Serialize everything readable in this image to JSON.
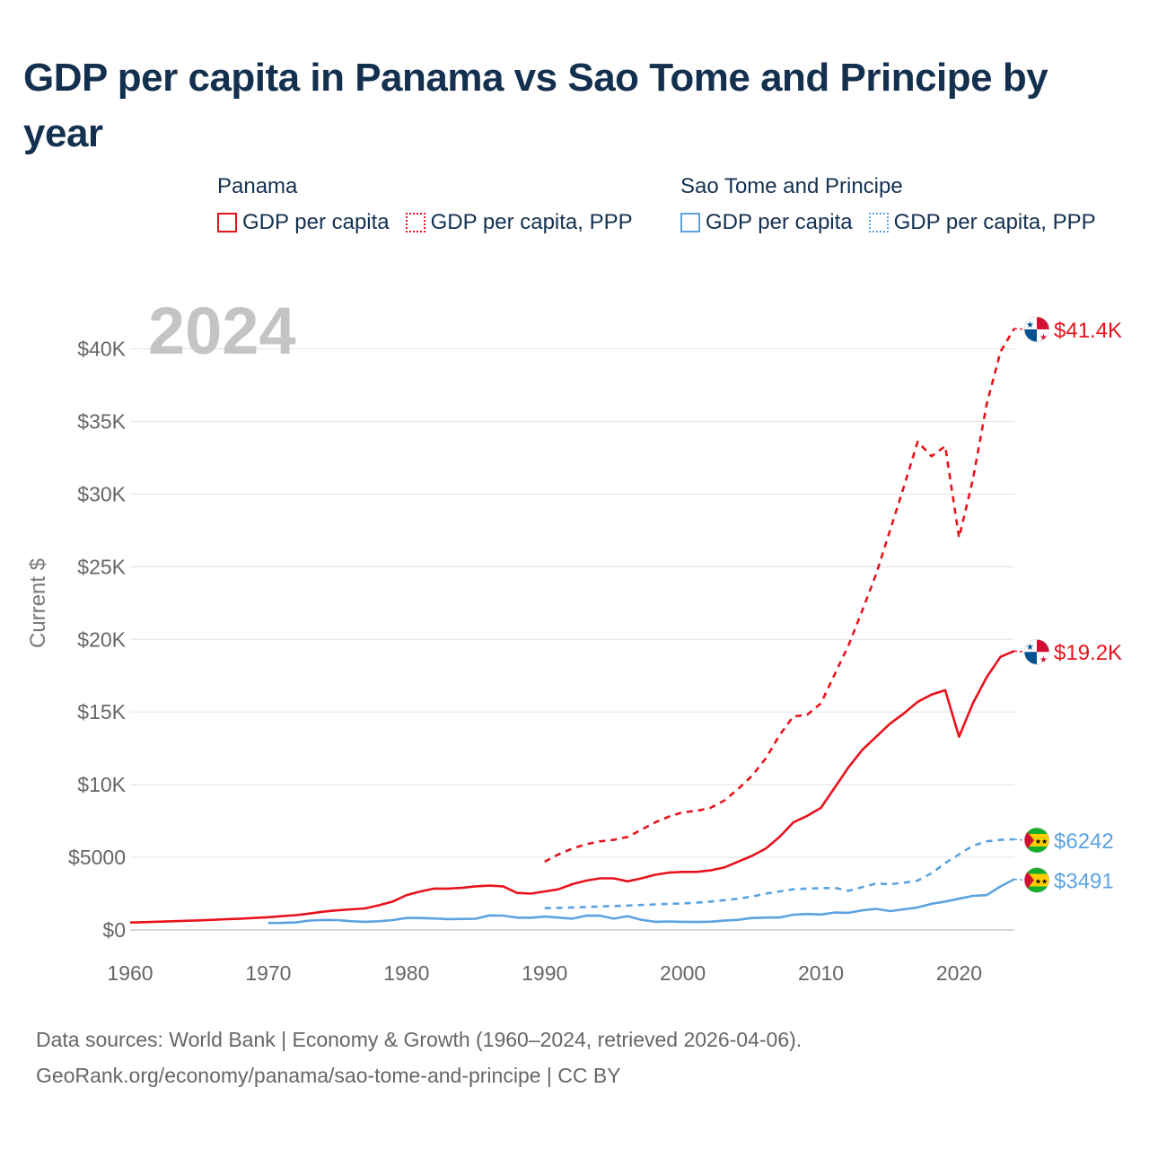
{
  "title": "GDP per capita in Panama vs Sao Tome and Principe by year",
  "legend": {
    "groups": [
      {
        "name": "Panama",
        "items": [
          {
            "label": "GDP per capita",
            "color": "#e8121c",
            "style": "solid"
          },
          {
            "label": "GDP per capita, PPP",
            "color": "#e8121c",
            "style": "dotted"
          }
        ]
      },
      {
        "name": "Sao Tome and Principe",
        "items": [
          {
            "label": "GDP per capita",
            "color": "#5ba3e0",
            "style": "solid"
          },
          {
            "label": "GDP per capita, PPP",
            "color": "#5ba3e0",
            "style": "dotted"
          }
        ]
      }
    ]
  },
  "year_watermark": "2024",
  "footer": {
    "line1": "Data sources: World Bank | Economy & Growth (1960–2024, retrieved 2026-04-06).",
    "line2": "GeoRank.org/economy/panama/sao-tome-and-principe | CC BY"
  },
  "chart_data": {
    "type": "line",
    "title": "GDP per capita in Panama vs Sao Tome and Principe by year",
    "xlabel": "",
    "ylabel": "Current $",
    "xlim": [
      1960,
      2024
    ],
    "ylim": [
      0,
      43000
    ],
    "x_ticks": [
      1960,
      1970,
      1980,
      1990,
      2000,
      2010,
      2020
    ],
    "x_tick_labels": [
      "1960",
      "1970",
      "1980",
      "1990",
      "2000",
      "2010",
      "2020"
    ],
    "y_ticks": [
      0,
      5000,
      10000,
      15000,
      20000,
      25000,
      30000,
      35000,
      40000
    ],
    "y_tick_labels": [
      "$0",
      "$5000",
      "$10K",
      "$15K",
      "$20K",
      "$25K",
      "$30K",
      "$35K",
      "$40K"
    ],
    "grid": true,
    "series": [
      {
        "name": "Panama GDP per capita",
        "color": "#e8121c",
        "dash": "solid",
        "end_label": "$19.2K",
        "flag": "panama",
        "x": [
          1960,
          1961,
          1962,
          1963,
          1964,
          1965,
          1966,
          1967,
          1968,
          1969,
          1970,
          1971,
          1972,
          1973,
          1974,
          1975,
          1976,
          1977,
          1978,
          1979,
          1980,
          1981,
          1982,
          1983,
          1984,
          1985,
          1986,
          1987,
          1988,
          1989,
          1990,
          1991,
          1992,
          1993,
          1994,
          1995,
          1996,
          1997,
          1998,
          1999,
          2000,
          2001,
          2002,
          2003,
          2004,
          2005,
          2006,
          2007,
          2008,
          2009,
          2010,
          2011,
          2012,
          2013,
          2014,
          2015,
          2016,
          2017,
          2018,
          2019,
          2020,
          2021,
          2022,
          2023,
          2024
        ],
        "values": [
          510,
          540,
          570,
          600,
          630,
          660,
          700,
          740,
          780,
          830,
          880,
          950,
          1020,
          1130,
          1260,
          1350,
          1420,
          1480,
          1700,
          1950,
          2400,
          2650,
          2850,
          2850,
          2900,
          3000,
          3050,
          3000,
          2550,
          2500,
          2650,
          2800,
          3150,
          3400,
          3550,
          3550,
          3350,
          3550,
          3800,
          3950,
          4000,
          4000,
          4100,
          4300,
          4700,
          5100,
          5600,
          6400,
          7400,
          7850,
          8400,
          9800,
          11200,
          12400,
          13300,
          14200,
          14900,
          15700,
          16200,
          16500,
          13300,
          15600,
          17400,
          18800,
          19200
        ]
      },
      {
        "name": "Panama GDP per capita, PPP",
        "color": "#e8121c",
        "dash": "dashed",
        "end_label": "$41.4K",
        "flag": "panama",
        "x": [
          1990,
          1991,
          1992,
          1993,
          1994,
          1995,
          1996,
          1997,
          1998,
          1999,
          2000,
          2001,
          2002,
          2003,
          2004,
          2005,
          2006,
          2007,
          2008,
          2009,
          2010,
          2011,
          2012,
          2013,
          2014,
          2015,
          2016,
          2017,
          2018,
          2019,
          2020,
          2021,
          2022,
          2023,
          2024
        ],
        "values": [
          4700,
          5200,
          5600,
          5900,
          6100,
          6200,
          6400,
          6900,
          7400,
          7800,
          8100,
          8200,
          8400,
          8900,
          9700,
          10600,
          11800,
          13400,
          14700,
          14800,
          15600,
          17600,
          19600,
          22000,
          24500,
          27500,
          30500,
          33600,
          32600,
          33300,
          27000,
          31000,
          36200,
          39800,
          41400
        ]
      },
      {
        "name": "Sao Tome and Principe GDP per capita",
        "color": "#5ba3e0",
        "dash": "solid",
        "end_label": "$3491",
        "flag": "sao-tome",
        "x": [
          1970,
          1971,
          1972,
          1973,
          1974,
          1975,
          1976,
          1977,
          1978,
          1979,
          1980,
          1981,
          1982,
          1983,
          1984,
          1985,
          1986,
          1987,
          1988,
          1989,
          1990,
          1991,
          1992,
          1993,
          1994,
          1995,
          1996,
          1997,
          1998,
          1999,
          2000,
          2001,
          2002,
          2003,
          2004,
          2005,
          2006,
          2007,
          2008,
          2009,
          2010,
          2011,
          2012,
          2013,
          2014,
          2015,
          2016,
          2017,
          2018,
          2019,
          2020,
          2021,
          2022,
          2023,
          2024
        ],
        "values": [
          480,
          490,
          520,
          650,
          690,
          680,
          600,
          560,
          600,
          680,
          820,
          820,
          790,
          750,
          760,
          770,
          1000,
          990,
          850,
          840,
          920,
          850,
          780,
          980,
          980,
          780,
          950,
          700,
          560,
          580,
          560,
          550,
          570,
          640,
          700,
          820,
          850,
          860,
          1050,
          1100,
          1060,
          1200,
          1180,
          1350,
          1450,
          1300,
          1420,
          1550,
          1800,
          1950,
          2150,
          2350,
          2400,
          3000,
          3491
        ]
      },
      {
        "name": "Sao Tome and Principe GDP per capita, PPP",
        "color": "#5ba3e0",
        "dash": "dashed",
        "end_label": "$6242",
        "flag": "sao-tome",
        "x": [
          1990,
          1991,
          1992,
          1993,
          1994,
          1995,
          1996,
          1997,
          1998,
          1999,
          2000,
          2001,
          2002,
          2003,
          2004,
          2005,
          2006,
          2007,
          2008,
          2009,
          2010,
          2011,
          2012,
          2013,
          2014,
          2015,
          2016,
          2017,
          2018,
          2019,
          2020,
          2021,
          2022,
          2023,
          2024
        ],
        "values": [
          1500,
          1520,
          1550,
          1580,
          1620,
          1650,
          1680,
          1720,
          1760,
          1800,
          1830,
          1880,
          1950,
          2050,
          2150,
          2300,
          2500,
          2650,
          2800,
          2850,
          2870,
          2900,
          2700,
          2950,
          3200,
          3150,
          3250,
          3400,
          3900,
          4600,
          5200,
          5800,
          6100,
          6200,
          6242
        ]
      }
    ]
  }
}
